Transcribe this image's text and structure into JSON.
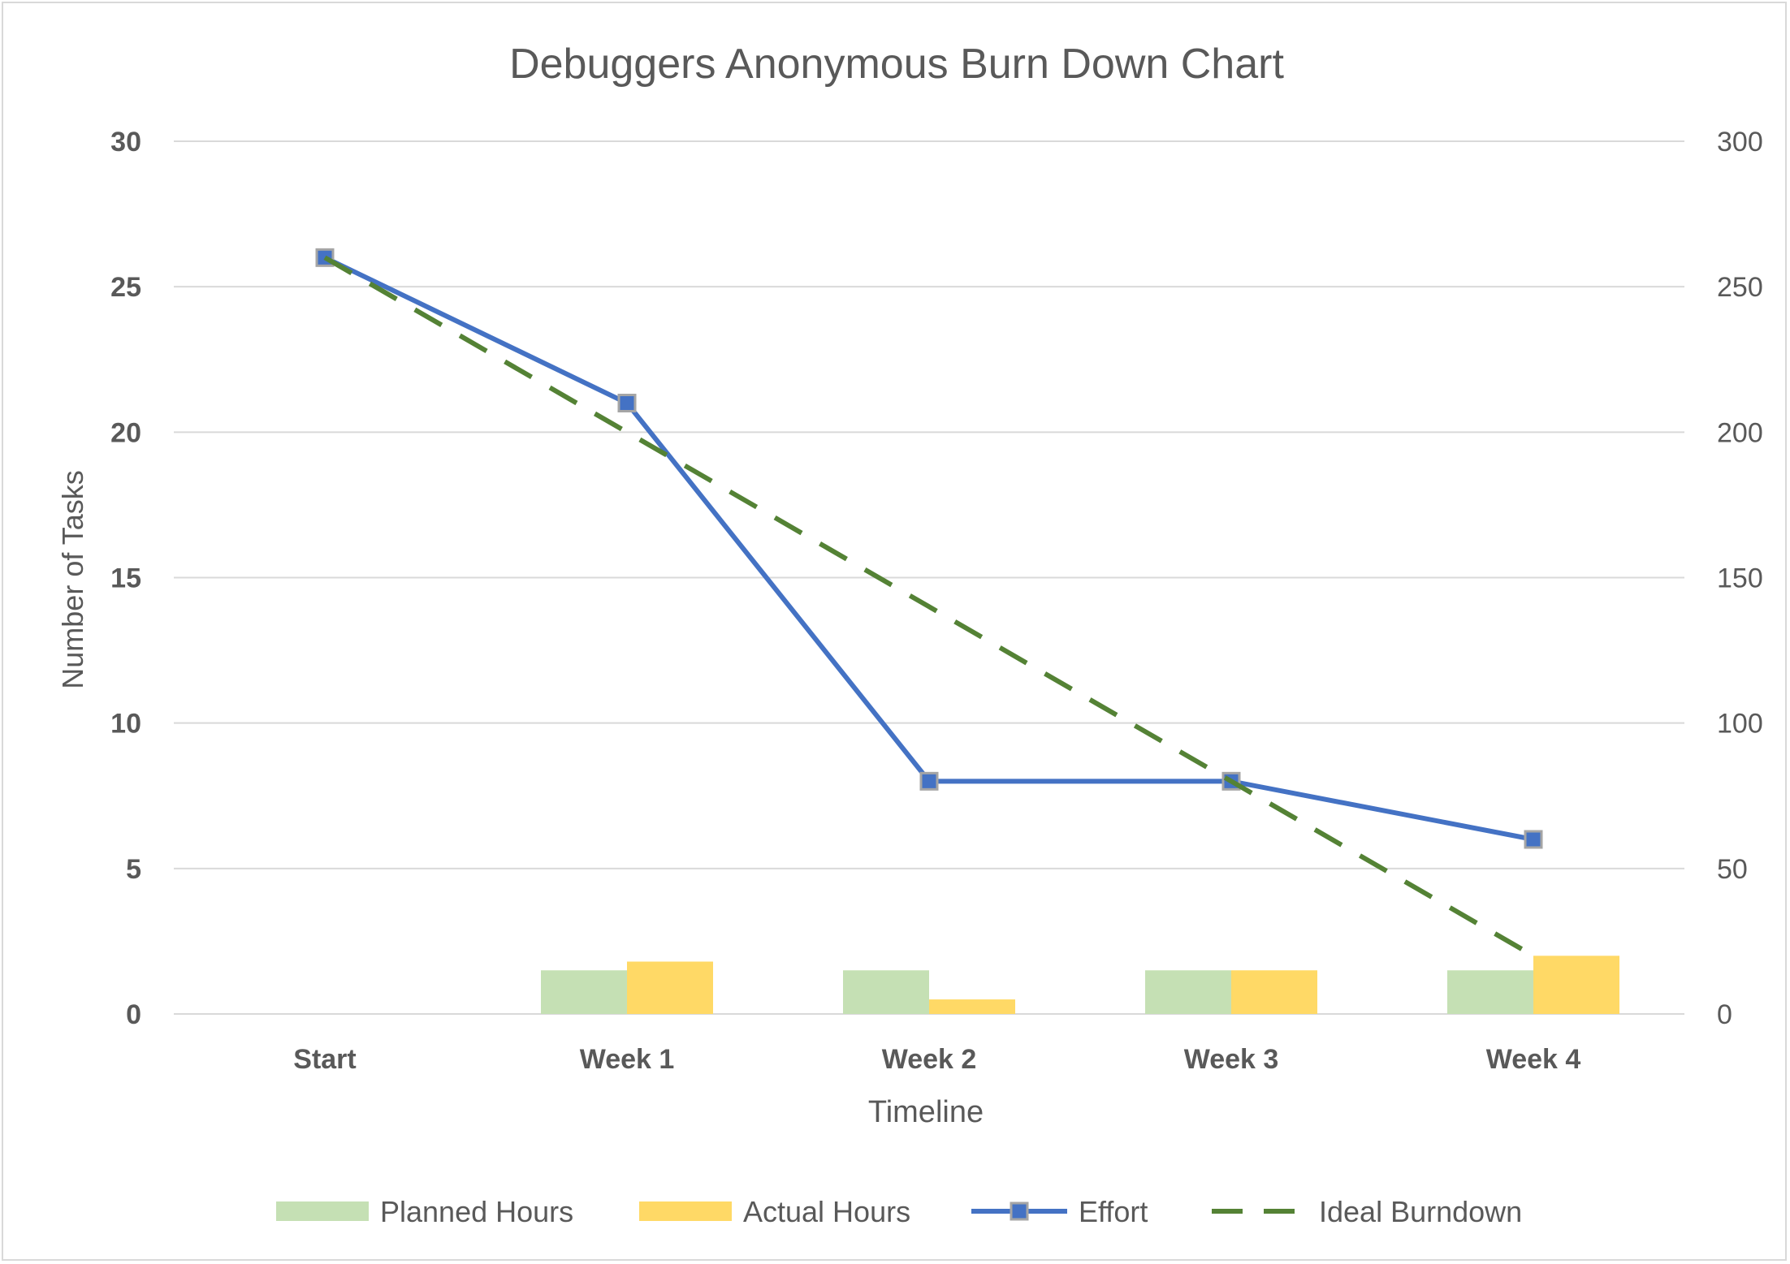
{
  "chart_data": {
    "type": "bar",
    "title": "Debuggers Anonymous Burn Down Chart",
    "xlabel": "Timeline",
    "ylabel": "Number of Tasks",
    "y2label": "",
    "categories": [
      "Start",
      "Week 1",
      "Week 2",
      "Week 3",
      "Week 4"
    ],
    "ylim": [
      0,
      30
    ],
    "yticks": [
      0,
      5,
      10,
      15,
      20,
      25,
      30
    ],
    "y2lim": [
      0,
      300
    ],
    "y2ticks": [
      0,
      50,
      100,
      150,
      200,
      250,
      300
    ],
    "grid": true,
    "legend_position": "bottom",
    "series": [
      {
        "name": "Planned Hours",
        "kind": "bar",
        "axis": "secondary",
        "color": "#c5e0b4",
        "values": [
          null,
          15,
          15,
          15,
          15
        ]
      },
      {
        "name": "Actual Hours",
        "kind": "bar",
        "axis": "secondary",
        "color": "#ffd966",
        "values": [
          null,
          18,
          5,
          15,
          20
        ]
      },
      {
        "name": "Effort",
        "kind": "line",
        "marker": "square",
        "axis": "primary",
        "color": "#4472c4",
        "values": [
          26,
          21,
          8,
          8,
          6
        ]
      },
      {
        "name": "Ideal Burndown",
        "kind": "line",
        "dash": "dashed",
        "axis": "primary",
        "color": "#548235",
        "values": [
          26,
          20,
          14,
          8,
          2
        ]
      }
    ]
  }
}
